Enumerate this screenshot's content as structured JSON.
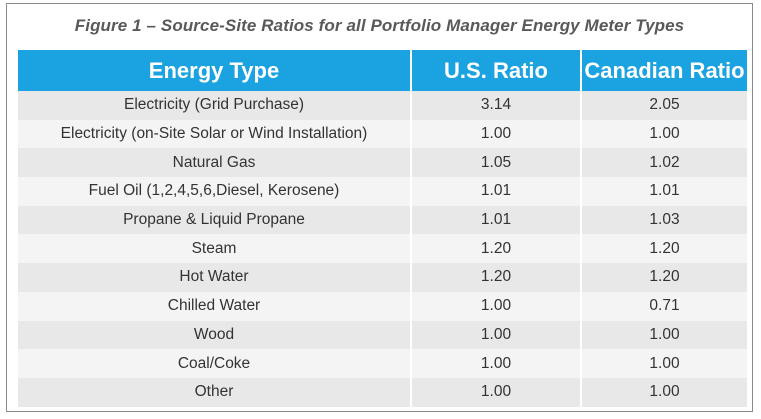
{
  "figure": {
    "caption": "Figure 1 – Source-Site Ratios for all Portfolio Manager Energy Meter Types"
  },
  "table": {
    "headers": [
      "Energy Type",
      "U.S. Ratio",
      "Canadian Ratio"
    ],
    "rows": [
      [
        "Electricity (Grid Purchase)",
        "3.14",
        "2.05"
      ],
      [
        "Electricity (on-Site Solar or Wind Installation)",
        "1.00",
        "1.00"
      ],
      [
        "Natural Gas",
        "1.05",
        "1.02"
      ],
      [
        "Fuel Oil (1,2,4,5,6,Diesel, Kerosene)",
        "1.01",
        "1.01"
      ],
      [
        "Propane & Liquid Propane",
        "1.01",
        "1.03"
      ],
      [
        "Steam",
        "1.20",
        "1.20"
      ],
      [
        "Hot Water",
        "1.20",
        "1.20"
      ],
      [
        "Chilled Water",
        "1.00",
        "0.71"
      ],
      [
        "Wood",
        "1.00",
        "1.00"
      ],
      [
        "Coal/Coke",
        "1.00",
        "1.00"
      ],
      [
        "Other",
        "1.00",
        "1.00"
      ]
    ]
  },
  "colors": {
    "header_background": "#1aa3e0",
    "header_text": "#ffffff",
    "row_odd": "#e8e8e8",
    "row_even": "#f4f4f4",
    "caption_text": "#595959"
  }
}
